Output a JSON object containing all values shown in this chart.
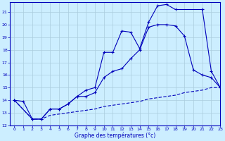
{
  "xlabel": "Graphe des températures (°c)",
  "bg_color": "#cceeff",
  "grid_color": "#aaccdd",
  "line_color": "#0000bb",
  "xlim": [
    -0.5,
    23
  ],
  "ylim": [
    12,
    21.8
  ],
  "yticks": [
    12,
    13,
    14,
    15,
    16,
    17,
    18,
    19,
    20,
    21
  ],
  "xticks": [
    0,
    1,
    2,
    3,
    4,
    5,
    6,
    7,
    8,
    9,
    10,
    11,
    12,
    13,
    14,
    15,
    16,
    17,
    18,
    19,
    20,
    21,
    22,
    23
  ],
  "line1_x": [
    0,
    1,
    2,
    3,
    4,
    5,
    6,
    7,
    8,
    9,
    10,
    11,
    12,
    13,
    14,
    15,
    16,
    17,
    18,
    21,
    22,
    23
  ],
  "line1_y": [
    14.0,
    13.9,
    12.5,
    12.5,
    13.3,
    13.3,
    13.7,
    14.3,
    14.8,
    15.0,
    17.8,
    17.8,
    19.5,
    19.4,
    18.1,
    20.2,
    21.5,
    21.6,
    21.2,
    21.2,
    16.3,
    15.0
  ],
  "line2_x": [
    0,
    2,
    3,
    4,
    5,
    6,
    7,
    8,
    9,
    10,
    11,
    12,
    13,
    14,
    15,
    16,
    17,
    18,
    19,
    20,
    21,
    22,
    23
  ],
  "line2_y": [
    14.0,
    12.5,
    12.5,
    13.3,
    13.3,
    13.7,
    14.3,
    14.3,
    14.6,
    15.8,
    16.3,
    16.5,
    17.3,
    18.0,
    19.8,
    20.0,
    20.0,
    19.9,
    19.1,
    16.4,
    16.0,
    15.8,
    15.0
  ],
  "line3_x": [
    0,
    2,
    3,
    4,
    5,
    6,
    7,
    8,
    9,
    10,
    11,
    12,
    13,
    14,
    15,
    16,
    17,
    18,
    19,
    20,
    21,
    22,
    23
  ],
  "line3_y": [
    14.0,
    12.5,
    12.5,
    12.8,
    12.9,
    13.0,
    13.1,
    13.2,
    13.3,
    13.5,
    13.6,
    13.7,
    13.8,
    13.9,
    14.1,
    14.2,
    14.3,
    14.4,
    14.6,
    14.7,
    14.8,
    15.0,
    15.0
  ]
}
